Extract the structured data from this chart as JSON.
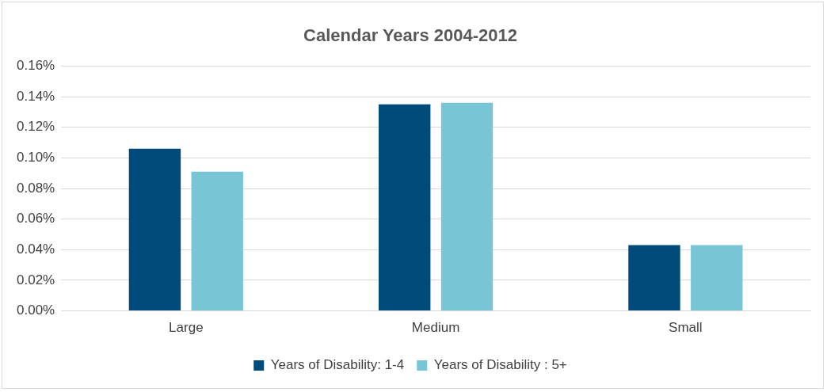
{
  "chart_data": {
    "type": "bar",
    "title": "Calendar Years 2004-2012",
    "categories": [
      "Large",
      "Medium",
      "Small"
    ],
    "series": [
      {
        "name": "Years of Disability: 1-4",
        "color": "#004b7a",
        "values": [
          0.106,
          0.135,
          0.043
        ]
      },
      {
        "name": "Years of Disability : 5+",
        "color": "#78c5d6",
        "values": [
          0.091,
          0.136,
          0.043
        ]
      }
    ],
    "ylim": [
      0,
      0.16
    ],
    "yticks": [
      {
        "value": 0,
        "label": "0.00%"
      },
      {
        "value": 0.02,
        "label": "0.02%"
      },
      {
        "value": 0.04,
        "label": "0.04%"
      },
      {
        "value": 0.06,
        "label": "0.06%"
      },
      {
        "value": 0.08,
        "label": "0.08%"
      },
      {
        "value": 0.1,
        "label": "0.10%"
      },
      {
        "value": 0.12,
        "label": "0.12%"
      },
      {
        "value": 0.14,
        "label": "0.14%"
      },
      {
        "value": 0.16,
        "label": "0.16%"
      }
    ],
    "grid": "y",
    "legend": "bottom"
  }
}
